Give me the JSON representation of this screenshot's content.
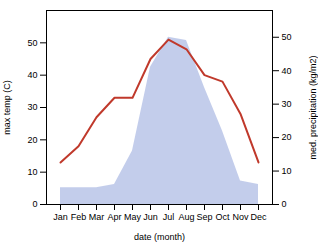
{
  "chart_data": {
    "type": "line",
    "xlabel": "date (month)",
    "ylabel": "max temp (C)",
    "y2label": "med. precipitation (kg/m2)",
    "categories": [
      "Jan",
      "Feb",
      "Mar",
      "Apr",
      "May",
      "Jun",
      "Jul",
      "Aug",
      "Sep",
      "Oct",
      "Nov",
      "Dec"
    ],
    "series": [
      {
        "type": "area",
        "axis": "y2",
        "color": "#b8c4e8",
        "values": [
          5,
          5,
          5,
          6,
          16,
          41,
          50,
          49,
          35,
          22,
          7,
          6
        ]
      },
      {
        "type": "line",
        "color": "#c0392b",
        "values": [
          13,
          18,
          27,
          33,
          33,
          45,
          51,
          48,
          40,
          38,
          28,
          13
        ]
      }
    ],
    "ylim": [
      0,
      60
    ],
    "yticks": [
      0,
      10,
      20,
      30,
      40,
      50
    ],
    "y2lim": [
      0,
      58
    ],
    "y2ticks": [
      0,
      10,
      20,
      30,
      40,
      50
    ],
    "grid": false
  }
}
